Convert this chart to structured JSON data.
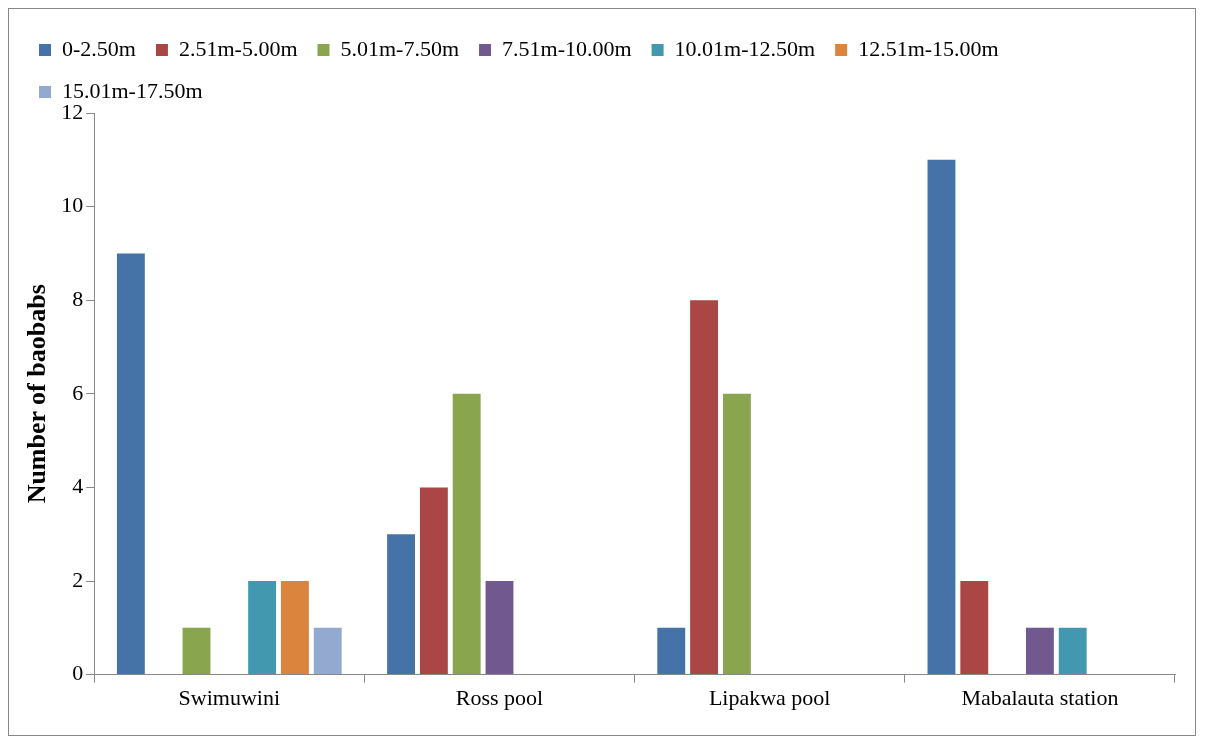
{
  "chart_data": {
    "type": "bar",
    "ylabel": "Number of baobabs",
    "categories": [
      "Swimuwini",
      "Ross pool",
      "Lipakwa pool",
      "Mabalauta station"
    ],
    "series": [
      {
        "name": "0-2.50m",
        "color": "#4572a7",
        "values": [
          9,
          3,
          1,
          11
        ]
      },
      {
        "name": "2.51m-5.00m",
        "color": "#aa4643",
        "values": [
          0,
          4,
          8,
          2
        ]
      },
      {
        "name": "5.01m-7.50m",
        "color": "#89a54e",
        "values": [
          1,
          6,
          6,
          0
        ]
      },
      {
        "name": "7.51m-10.00m",
        "color": "#71588f",
        "values": [
          0,
          2,
          0,
          1
        ]
      },
      {
        "name": "10.01m-12.50m",
        "color": "#4198af",
        "values": [
          2,
          0,
          0,
          1
        ]
      },
      {
        "name": "12.51m-15.00m",
        "color": "#db843d",
        "values": [
          2,
          0,
          0,
          0
        ]
      },
      {
        "name": "15.01m-17.50m",
        "color": "#93a9cf",
        "values": [
          1,
          0,
          0,
          0
        ]
      }
    ],
    "ylim": [
      0,
      12
    ],
    "yticks": [
      0,
      2,
      4,
      6,
      8,
      10,
      12
    ],
    "grid": false,
    "legend": "top"
  }
}
